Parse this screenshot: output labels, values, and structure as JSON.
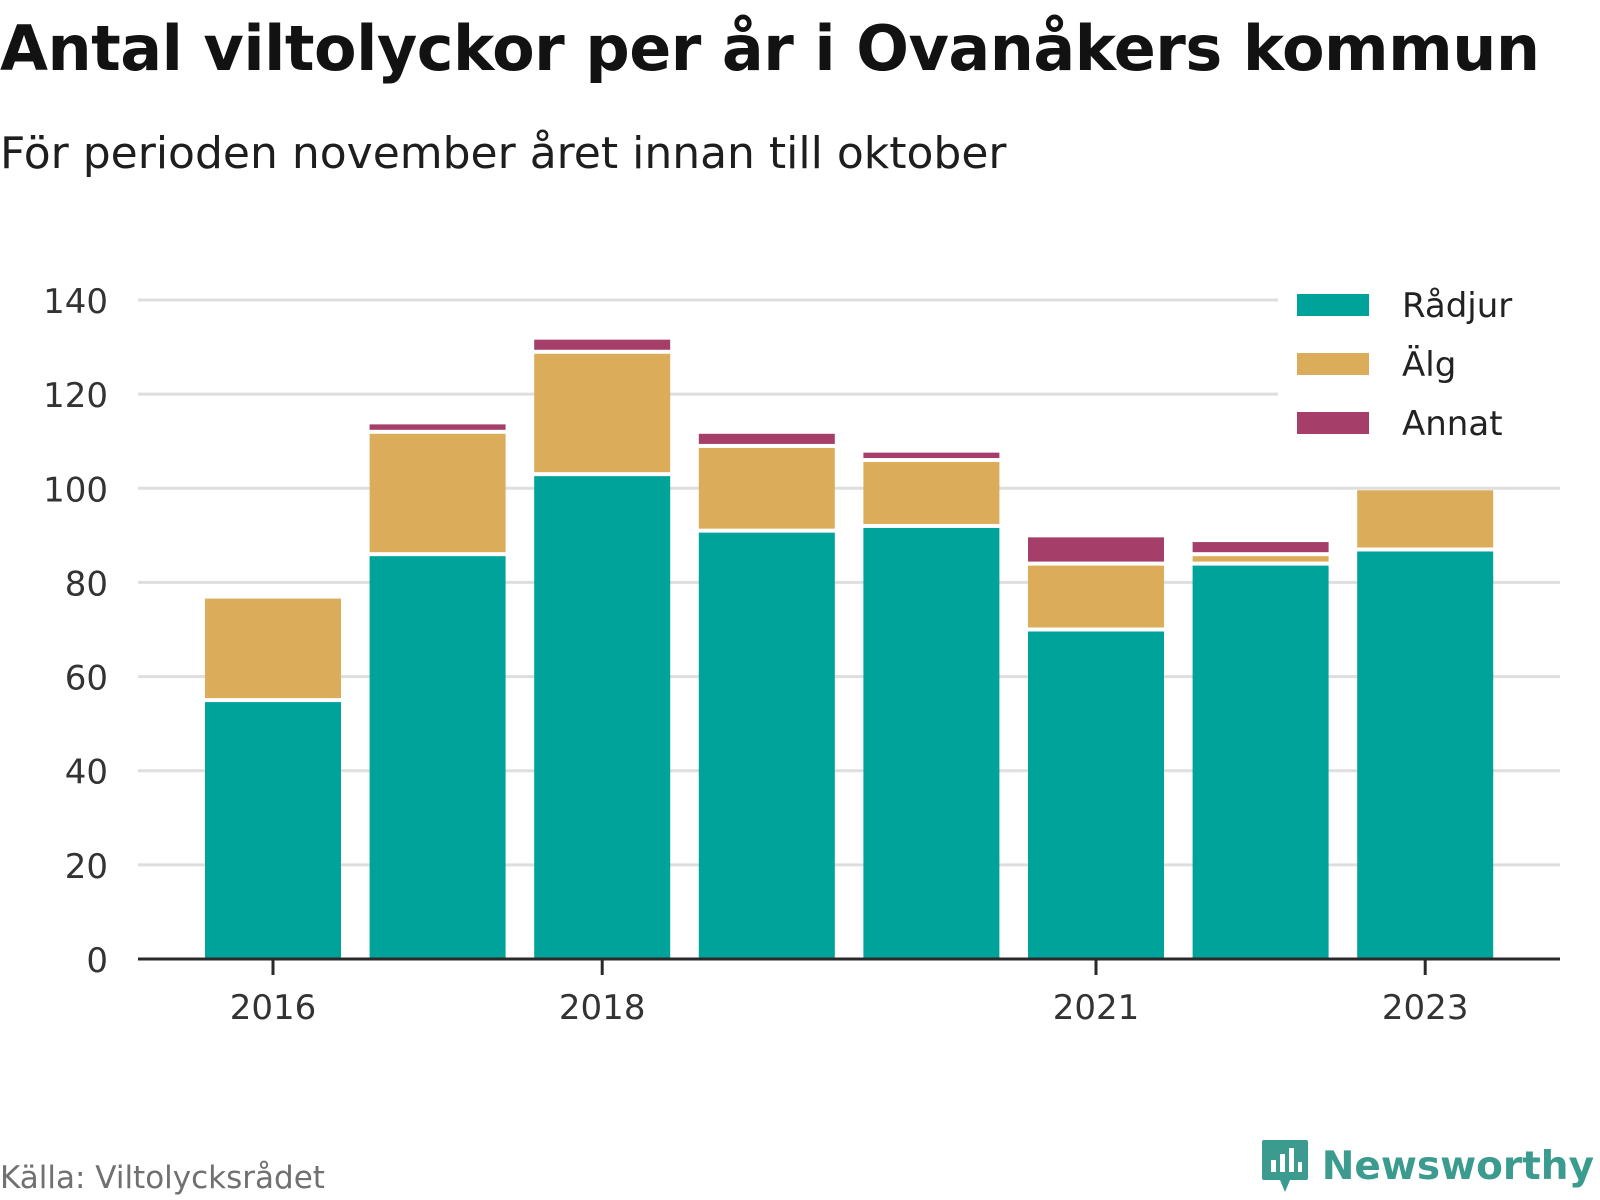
{
  "title": "Antal viltolyckor per år i Ovanåkers kommun",
  "subtitle": "För perioden november året innan till oktober",
  "source": "Källa: Viltolycksrådet",
  "brand": {
    "name": "Newsworthy",
    "icon": "newsworthy-logo-icon",
    "color": "#3a9b8e"
  },
  "chart_data": {
    "type": "bar",
    "stacked": true,
    "x": [
      2016,
      2017,
      2018,
      2019,
      2020,
      2021,
      2022,
      2023
    ],
    "xticks": [
      "2016",
      "2018",
      "2021",
      "2023"
    ],
    "series": [
      {
        "name": "Rådjur",
        "color": "#00a39a",
        "values": [
          55,
          86,
          103,
          91,
          92,
          70,
          84,
          87
        ]
      },
      {
        "name": "Älg",
        "color": "#dbac5a",
        "values": [
          22,
          26,
          26,
          18,
          14,
          14,
          2,
          13
        ]
      },
      {
        "name": "Annat",
        "color": "#a53f69",
        "values": [
          0,
          2,
          3,
          3,
          2,
          6,
          3,
          0
        ]
      }
    ],
    "ylim": [
      0,
      140
    ],
    "yticks": [
      0,
      20,
      40,
      60,
      80,
      100,
      120,
      140
    ],
    "grid": true,
    "legend": "top-right",
    "xlabel": "",
    "ylabel": ""
  }
}
